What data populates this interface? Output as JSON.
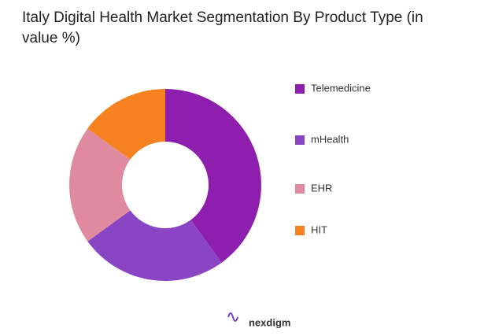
{
  "chart_data": {
    "type": "donut",
    "title": "Italy Digital Health Market Segmentation By Product Type (in value %)",
    "categories": [
      "Telemedicine",
      "mHealth",
      "EHR",
      "HIT"
    ],
    "values": [
      40,
      25,
      20,
      15
    ],
    "colors": [
      "#8e1fae",
      "#8a45c4",
      "#e08aa0",
      "#f5821f"
    ]
  },
  "brand": "nexdigm"
}
